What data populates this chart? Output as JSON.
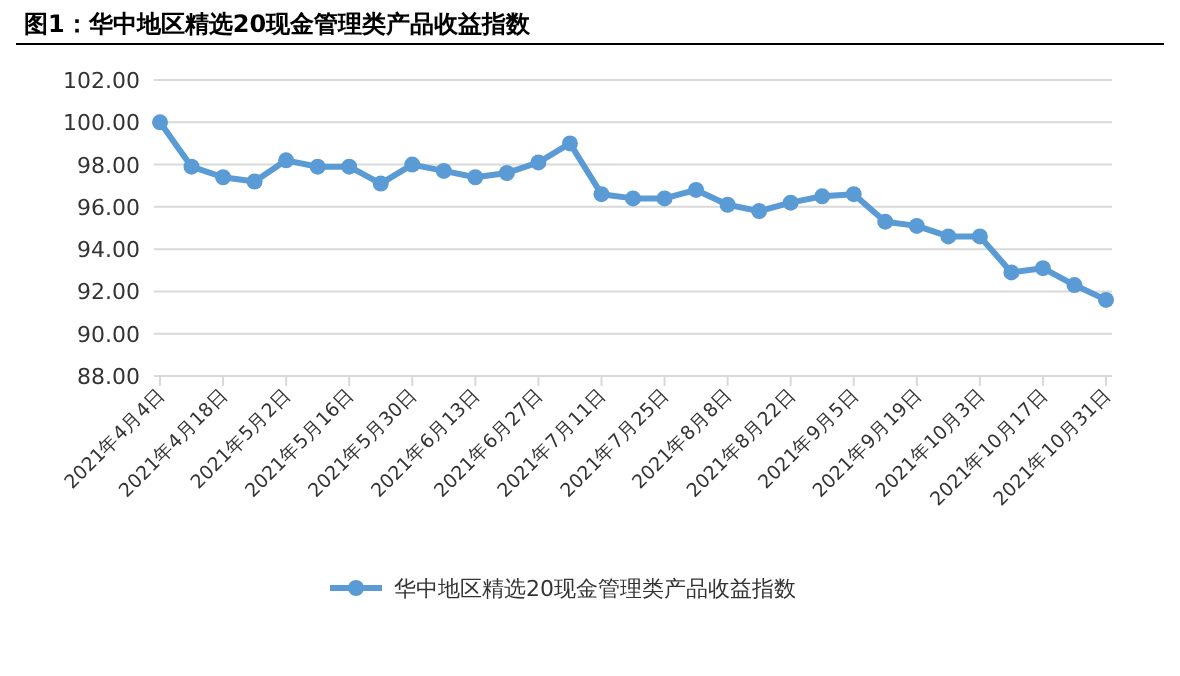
{
  "chart_data": {
    "type": "line",
    "title": "图1：华中地区精选20现金管理类产品收益指数",
    "categories": [
      "2021年4月4日",
      null,
      "2021年4月18日",
      null,
      "2021年5月2日",
      null,
      "2021年5月16日",
      null,
      "2021年5月30日",
      null,
      "2021年6月13日",
      null,
      "2021年6月27日",
      null,
      "2021年7月11日",
      null,
      "2021年7月25日",
      null,
      "2021年8月8日",
      null,
      "2021年8月22日",
      null,
      "2021年9月5日",
      null,
      "2021年9月19日",
      null,
      "2021年10月3日",
      null,
      "2021年10月17日",
      null,
      "2021年10月31日"
    ],
    "series": [
      {
        "name": "华中地区精选20现金管理类产品收益指数",
        "color": "#5b9bd5",
        "values": [
          100.0,
          97.9,
          97.4,
          97.2,
          98.2,
          97.9,
          97.9,
          97.1,
          98.0,
          97.7,
          97.4,
          97.6,
          98.1,
          99.0,
          96.6,
          96.4,
          96.4,
          96.8,
          96.1,
          95.8,
          96.2,
          96.5,
          96.6,
          95.3,
          95.1,
          94.6,
          94.6,
          92.9,
          93.1,
          92.3,
          91.6
        ]
      }
    ],
    "ylim": [
      88,
      102
    ],
    "yticks": [
      {
        "value": 88,
        "label": "88.00"
      },
      {
        "value": 90,
        "label": "90.00"
      },
      {
        "value": 92,
        "label": "92.00"
      },
      {
        "value": 94,
        "label": "94.00"
      },
      {
        "value": 96,
        "label": "96.00"
      },
      {
        "value": 98,
        "label": "98.00"
      },
      {
        "value": 100,
        "label": "100.00"
      },
      {
        "value": 102,
        "label": "102.00"
      }
    ],
    "grid": "y",
    "legend": "bottom",
    "marker": "circle",
    "line_style": "solid"
  }
}
